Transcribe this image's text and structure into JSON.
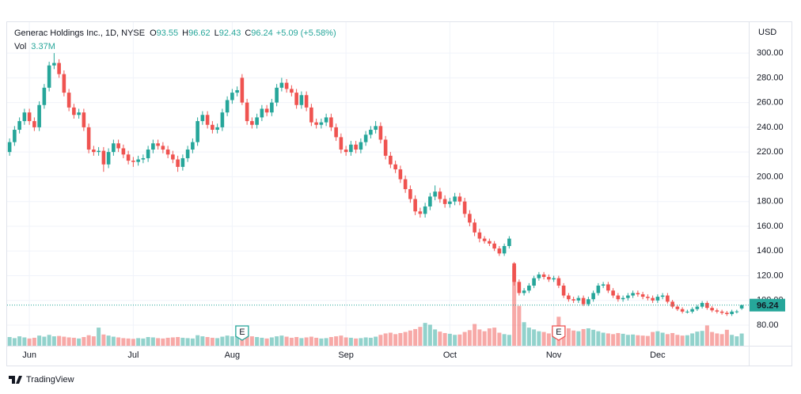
{
  "chart_data": {
    "type": "candlestick",
    "title": "Generac Holdings Inc., 1D, NYSE",
    "ohlc_labels": {
      "open": "O",
      "high": "H",
      "low": "L",
      "close": "C"
    },
    "change_label": "+5.09 (+5.58%)",
    "volume_title": "Vol",
    "last_volume_label": "3.37M",
    "currency": "USD",
    "watermark": "TradingView",
    "up_color": "#26a69a",
    "down_color": "#ef5350",
    "grid": true,
    "ylim": [
      63.4,
      325
    ],
    "yticks": [
      {
        "value": 80,
        "label": "80.00"
      },
      {
        "value": 100,
        "label": "100.00"
      },
      {
        "value": 120,
        "label": "120.00"
      },
      {
        "value": 140,
        "label": "140.00"
      },
      {
        "value": 160,
        "label": "160.00"
      },
      {
        "value": 180,
        "label": "180.00"
      },
      {
        "value": 200,
        "label": "200.00"
      },
      {
        "value": 220,
        "label": "220.00"
      },
      {
        "value": 240,
        "label": "240.00"
      },
      {
        "value": 260,
        "label": "260.00"
      },
      {
        "value": 280,
        "label": "280.00"
      },
      {
        "value": 300,
        "label": "300.00"
      }
    ],
    "xticks": [
      {
        "value": 4,
        "label": "Jun"
      },
      {
        "value": 25,
        "label": "Jul"
      },
      {
        "value": 45,
        "label": "Aug"
      },
      {
        "value": 68,
        "label": "Sep"
      },
      {
        "value": 89,
        "label": "Oct"
      },
      {
        "value": 110,
        "label": "Nov"
      },
      {
        "value": 131,
        "label": "Dec"
      }
    ],
    "vlim": [
      0,
      22.7
    ],
    "events": [
      {
        "index": 47,
        "label": "E",
        "color": "#26a69a"
      },
      {
        "index": 111,
        "label": "E",
        "color": "#ef5350"
      }
    ],
    "open": [
      220,
      228,
      238,
      245,
      252,
      245,
      240,
      258,
      272,
      290,
      292,
      283,
      268,
      256,
      250,
      252,
      240,
      222,
      220,
      221,
      210,
      220,
      227,
      223,
      218,
      213,
      212,
      214,
      215,
      222,
      227,
      225,
      222,
      218,
      214,
      208,
      215,
      222,
      228,
      245,
      250,
      242,
      238,
      240,
      252,
      262,
      268,
      280,
      260,
      245,
      242,
      248,
      255,
      252,
      260,
      272,
      276,
      271,
      268,
      258,
      266,
      256,
      244,
      242,
      244,
      248,
      240,
      232,
      222,
      220,
      226,
      222,
      228,
      234,
      238,
      241,
      230,
      217,
      210,
      206,
      198,
      190,
      182,
      172,
      170,
      176,
      184,
      188,
      182,
      178,
      180,
      184,
      180,
      170,
      163,
      155,
      150,
      148,
      146,
      142,
      138,
      144,
      130,
      115,
      106,
      108,
      112,
      118,
      121,
      119,
      117,
      118,
      112,
      104,
      101,
      100,
      102,
      97,
      101,
      106,
      112,
      113,
      108,
      104,
      101,
      102,
      104,
      106,
      105,
      103,
      102,
      100,
      103,
      104,
      99,
      95,
      93,
      91,
      91,
      93,
      95,
      98,
      94,
      92,
      91,
      90,
      89,
      91,
      93.55
    ],
    "high": [
      231,
      241,
      248,
      255,
      255,
      248,
      261,
      275,
      293,
      300,
      295,
      286,
      271,
      259,
      255,
      255,
      243,
      225,
      224,
      224,
      223,
      230,
      230,
      226,
      221,
      216,
      217,
      218,
      225,
      230,
      230,
      228,
      225,
      221,
      217,
      218,
      225,
      231,
      248,
      253,
      253,
      245,
      243,
      255,
      265,
      271,
      273,
      283,
      263,
      248,
      251,
      258,
      258,
      263,
      275,
      280,
      279,
      274,
      271,
      269,
      269,
      259,
      247,
      247,
      251,
      251,
      243,
      235,
      225,
      229,
      229,
      231,
      237,
      241,
      245,
      244,
      233,
      220,
      213,
      209,
      201,
      193,
      185,
      175,
      179,
      187,
      193,
      191,
      185,
      183,
      187,
      187,
      183,
      173,
      166,
      158,
      152,
      150,
      148,
      144,
      146,
      152,
      131,
      117,
      110,
      114,
      120,
      123,
      123,
      121,
      120,
      120,
      114,
      106,
      103,
      104,
      104,
      103,
      108,
      114,
      115,
      115,
      110,
      106,
      104,
      106,
      108,
      108,
      107,
      105,
      104,
      105,
      106,
      106,
      100.5,
      96.5,
      94.5,
      92.5,
      94.5,
      96.5,
      99.5,
      99.5,
      95.5,
      93.5,
      92.5,
      91.5,
      92.5,
      92.5,
      96.62
    ],
    "low": [
      217,
      225,
      235,
      242,
      242,
      237,
      237,
      255,
      269,
      287,
      280,
      265,
      253,
      247,
      247,
      237,
      219,
      217,
      217,
      204,
      207,
      217,
      220,
      215,
      210,
      208,
      209,
      211,
      212,
      219,
      222,
      219,
      215,
      211,
      204,
      205,
      212,
      219,
      225,
      242,
      239,
      235,
      235,
      237,
      249,
      259,
      265,
      258,
      242,
      239,
      239,
      245,
      249,
      249,
      257,
      269,
      268,
      265,
      255,
      255,
      253,
      241,
      239,
      239,
      241,
      237,
      229,
      219,
      217,
      217,
      219,
      219,
      225,
      231,
      235,
      227,
      214,
      207,
      203,
      195,
      187,
      179,
      169,
      167,
      167,
      173,
      181,
      179,
      175,
      175,
      177,
      177,
      167,
      160,
      152,
      147,
      146,
      144,
      140,
      136,
      136,
      142,
      112,
      104,
      104,
      106,
      110,
      116,
      117,
      115,
      115,
      110,
      102,
      99,
      98,
      98,
      95.5,
      95.5,
      99,
      104,
      110,
      106,
      102,
      99,
      99,
      100,
      102,
      103,
      101,
      100,
      98,
      98,
      101,
      97.5,
      93.5,
      91.5,
      89.5,
      89.5,
      89.5,
      91.5,
      93.5,
      92.5,
      90.5,
      89.5,
      88.5,
      87.5,
      87.5,
      89.5,
      92.43
    ],
    "close": [
      228,
      238,
      245,
      252,
      245,
      240,
      258,
      272,
      290,
      292,
      283,
      268,
      256,
      250,
      252,
      240,
      222,
      220,
      221,
      210,
      220,
      227,
      223,
      218,
      213,
      212,
      214,
      215,
      222,
      227,
      225,
      222,
      218,
      214,
      208,
      215,
      222,
      228,
      245,
      250,
      242,
      238,
      240,
      252,
      262,
      268,
      270,
      260,
      245,
      242,
      248,
      255,
      252,
      260,
      272,
      276,
      271,
      268,
      258,
      266,
      256,
      244,
      242,
      244,
      248,
      240,
      232,
      222,
      220,
      226,
      222,
      228,
      234,
      238,
      241,
      230,
      217,
      210,
      206,
      198,
      190,
      182,
      172,
      170,
      176,
      184,
      188,
      182,
      178,
      180,
      184,
      180,
      170,
      163,
      155,
      150,
      148,
      146,
      142,
      138,
      144,
      150,
      115,
      106,
      108,
      112,
      118,
      121,
      119,
      117,
      118,
      112,
      104,
      101,
      100,
      102,
      97,
      101,
      106,
      112,
      113,
      108,
      104,
      101,
      102,
      104,
      106,
      105,
      103,
      102,
      100,
      103,
      104,
      99,
      95,
      93,
      91,
      91,
      93,
      95,
      98,
      94,
      92,
      91,
      90,
      89,
      91,
      91.15,
      96.24
    ],
    "volume": [
      2.4,
      2.1,
      2.6,
      2.3,
      2.0,
      2.2,
      2.8,
      2.5,
      3.0,
      2.6,
      2.7,
      2.5,
      2.3,
      2.2,
      2.0,
      2.4,
      2.9,
      2.6,
      5.0,
      3.1,
      2.8,
      2.5,
      2.3,
      2.1,
      2.0,
      1.9,
      2.1,
      2.0,
      2.4,
      2.3,
      2.1,
      2.0,
      2.2,
      2.3,
      2.4,
      2.2,
      2.1,
      2.0,
      2.9,
      2.6,
      2.4,
      2.2,
      2.1,
      2.5,
      2.8,
      2.6,
      3.2,
      4.0,
      3.1,
      2.6,
      2.4,
      2.2,
      2.0,
      2.3,
      2.6,
      2.8,
      2.5,
      2.2,
      2.4,
      2.1,
      2.3,
      2.5,
      2.2,
      2.0,
      2.1,
      2.4,
      2.6,
      2.8,
      2.3,
      2.2,
      2.0,
      2.1,
      2.3,
      2.2,
      2.5,
      3.0,
      3.4,
      3.6,
      3.2,
      3.5,
      3.8,
      4.2,
      4.6,
      5.2,
      6.3,
      5.8,
      4.5,
      3.9,
      3.5,
      3.3,
      3.0,
      3.1,
      3.8,
      4.3,
      6.0,
      4.5,
      4.0,
      4.8,
      5.0,
      3.6,
      3.2,
      3.0,
      22.0,
      11.0,
      6.5,
      5.0,
      4.5,
      4.0,
      3.8,
      3.4,
      4.6,
      8.0,
      5.5,
      4.8,
      4.2,
      4.0,
      4.6,
      4.8,
      4.4,
      4.0,
      3.6,
      3.4,
      3.2,
      3.5,
      3.3,
      3.0,
      3.1,
      2.9,
      2.8,
      2.7,
      3.8,
      4.0,
      3.6,
      3.2,
      3.5,
      3.0,
      2.8,
      2.9,
      3.4,
      3.9,
      4.1,
      5.6,
      3.8,
      3.4,
      3.2,
      4.4,
      3.0,
      2.6,
      3.37
    ]
  }
}
